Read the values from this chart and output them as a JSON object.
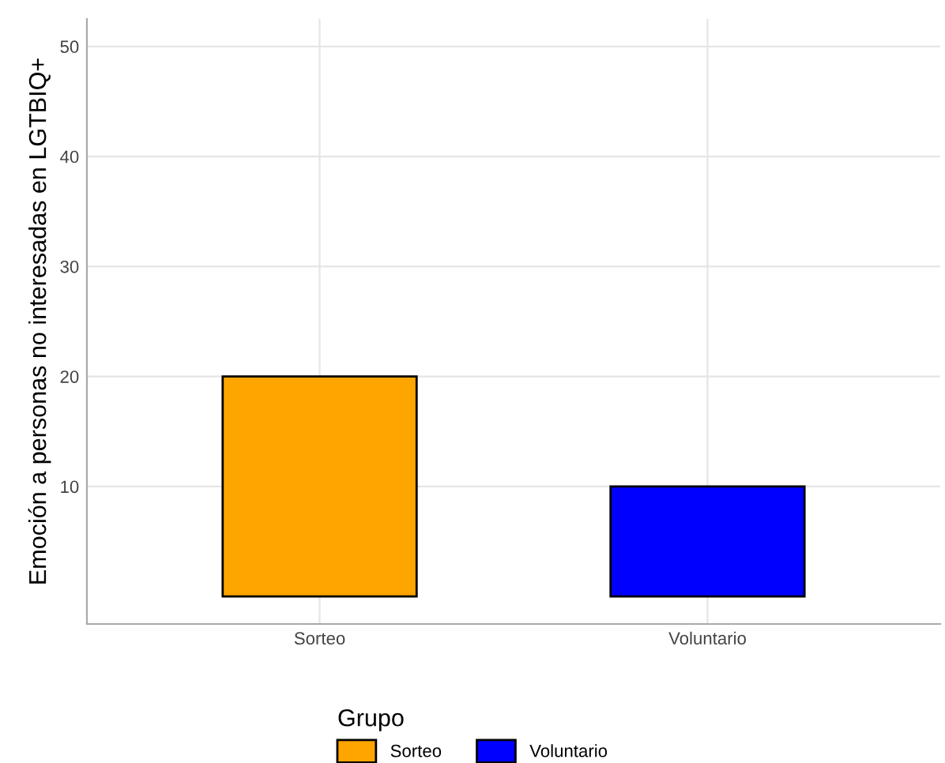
{
  "chart_data": {
    "type": "bar",
    "ylabel": "Emoción a personas no interesadas en LGTBIQ+",
    "legend_title": "Grupo",
    "categories": [
      "Sorteo",
      "Voluntario"
    ],
    "series": [
      {
        "name": "Sorteo",
        "color": "#ffa500",
        "values": [
          20,
          null
        ]
      },
      {
        "name": "Voluntario",
        "color": "#0000ff",
        "values": [
          null,
          10
        ]
      }
    ],
    "ylim": [
      -2.5,
      52.5
    ],
    "yticks": [
      10,
      20,
      30,
      40,
      50
    ],
    "grid": true,
    "legend": "bottom"
  }
}
